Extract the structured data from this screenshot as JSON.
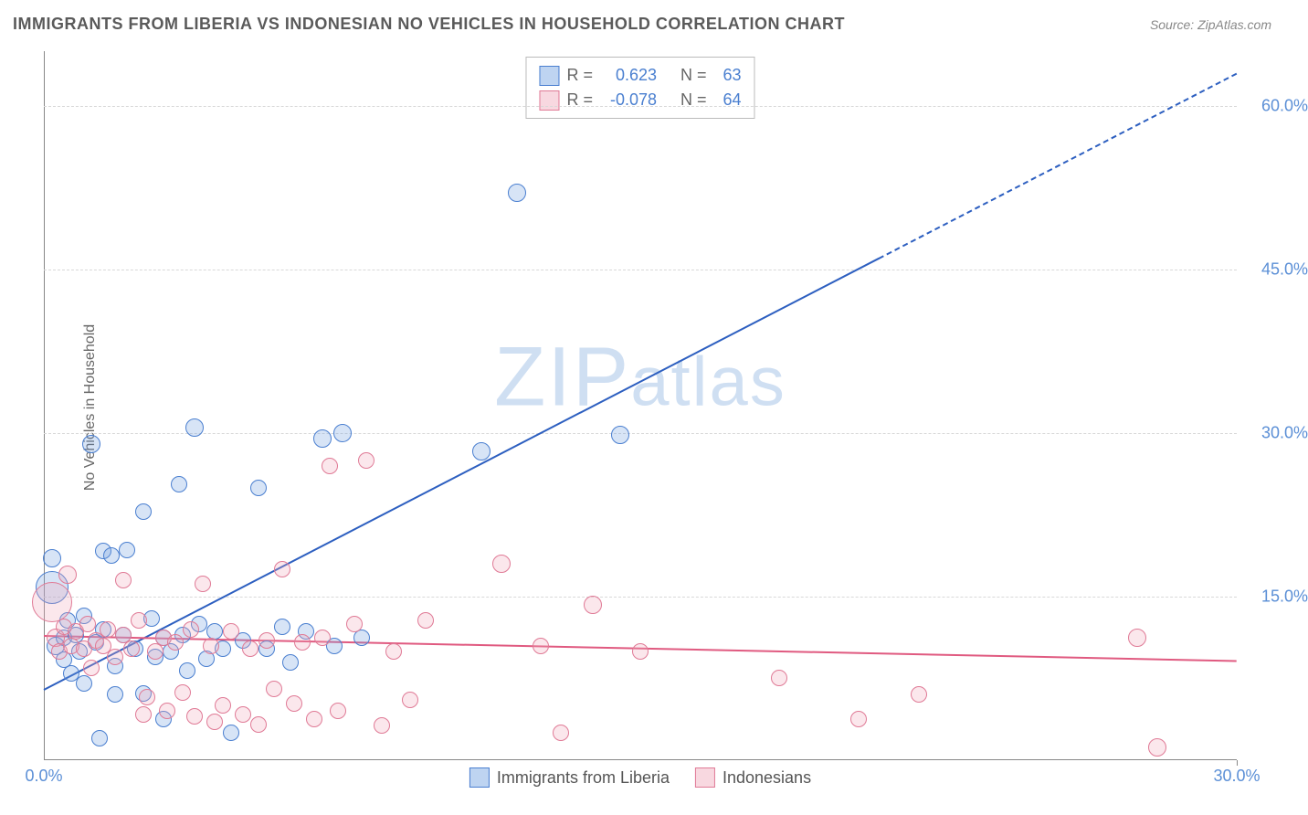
{
  "title": "IMMIGRANTS FROM LIBERIA VS INDONESIAN NO VEHICLES IN HOUSEHOLD CORRELATION CHART",
  "source": "Source: ZipAtlas.com",
  "ylabel": "No Vehicles in Household",
  "watermark_a": "ZIP",
  "watermark_b": "atlas",
  "chart": {
    "type": "scatter",
    "xlim": [
      0,
      30
    ],
    "ylim": [
      0,
      65
    ],
    "xtick_values": [
      0,
      30
    ],
    "xtick_labels": [
      "0.0%",
      "30.0%"
    ],
    "ytick_values": [
      15,
      30,
      45,
      60
    ],
    "ytick_labels": [
      "15.0%",
      "30.0%",
      "45.0%",
      "60.0%"
    ],
    "grid_color": "#d8d8d8",
    "axis_color": "#888888",
    "tick_label_color": "#5b8fd6",
    "tick_fontsize": 18,
    "background_color": "#ffffff",
    "marker_radius": 9,
    "marker_stroke_w": 1.5,
    "marker_fill_opacity": 0.28,
    "series": [
      {
        "name": "Immigrants from Liberia",
        "color": "#6f9fe0",
        "stroke": "#4a7fd0",
        "stats": {
          "R": "0.623",
          "N": "63"
        },
        "trend": {
          "x0": 0,
          "y0": 6.5,
          "x1": 30,
          "y1": 63,
          "color": "#2d5fc0",
          "width": 2,
          "dash_after_x": 21
        },
        "points": [
          [
            0.2,
            15.8,
            18
          ],
          [
            0.2,
            18.5,
            10
          ],
          [
            0.3,
            10.5,
            10
          ],
          [
            0.5,
            11.2,
            9
          ],
          [
            0.5,
            9.2,
            9
          ],
          [
            0.6,
            12.8,
            9
          ],
          [
            0.7,
            8.0,
            9
          ],
          [
            0.8,
            11.5,
            9
          ],
          [
            0.9,
            10.0,
            9
          ],
          [
            1.0,
            13.2,
            9
          ],
          [
            1.0,
            7.0,
            9
          ],
          [
            1.2,
            29.0,
            10
          ],
          [
            1.3,
            10.8,
            9
          ],
          [
            1.4,
            2.0,
            9
          ],
          [
            1.5,
            19.2,
            9
          ],
          [
            1.5,
            12.0,
            9
          ],
          [
            1.7,
            18.8,
            9
          ],
          [
            1.8,
            8.6,
            9
          ],
          [
            1.8,
            6.0,
            9
          ],
          [
            2.0,
            11.5,
            9
          ],
          [
            2.1,
            19.3,
            9
          ],
          [
            2.3,
            10.2,
            9
          ],
          [
            2.5,
            22.8,
            9
          ],
          [
            2.5,
            6.1,
            9
          ],
          [
            2.7,
            13.0,
            9
          ],
          [
            2.8,
            9.5,
            9
          ],
          [
            3.0,
            11.2,
            9
          ],
          [
            3.0,
            3.8,
            9
          ],
          [
            3.2,
            10.0,
            9
          ],
          [
            3.4,
            25.3,
            9
          ],
          [
            3.5,
            11.5,
            9
          ],
          [
            3.6,
            8.2,
            9
          ],
          [
            3.8,
            30.5,
            10
          ],
          [
            3.9,
            12.5,
            9
          ],
          [
            4.1,
            9.3,
            9
          ],
          [
            4.3,
            11.8,
            9
          ],
          [
            4.5,
            10.2,
            9
          ],
          [
            4.7,
            2.5,
            9
          ],
          [
            5.0,
            11.0,
            9
          ],
          [
            5.4,
            25.0,
            9
          ],
          [
            5.6,
            10.2,
            9
          ],
          [
            6.0,
            12.2,
            9
          ],
          [
            6.2,
            9.0,
            9
          ],
          [
            6.6,
            11.8,
            9
          ],
          [
            7.0,
            29.5,
            10
          ],
          [
            7.3,
            10.5,
            9
          ],
          [
            7.5,
            30.0,
            10
          ],
          [
            8.0,
            11.2,
            9
          ],
          [
            11.0,
            28.3,
            10
          ],
          [
            11.9,
            52.0,
            10
          ],
          [
            14.5,
            29.8,
            10
          ]
        ]
      },
      {
        "name": "Indonesians",
        "color": "#f0a8ba",
        "stroke": "#e07a96",
        "stats": {
          "R": "-0.078",
          "N": "64"
        },
        "trend": {
          "x0": 0,
          "y0": 11.5,
          "x1": 30,
          "y1": 9.2,
          "color": "#e05a80",
          "width": 2
        },
        "points": [
          [
            0.2,
            14.5,
            22
          ],
          [
            0.3,
            11.2,
            10
          ],
          [
            0.4,
            10.0,
            9
          ],
          [
            0.5,
            12.2,
            9
          ],
          [
            0.6,
            17.0,
            10
          ],
          [
            0.7,
            10.5,
            9
          ],
          [
            0.8,
            11.8,
            9
          ],
          [
            1.0,
            10.2,
            9
          ],
          [
            1.1,
            12.5,
            9
          ],
          [
            1.2,
            8.5,
            9
          ],
          [
            1.3,
            11.0,
            9
          ],
          [
            1.5,
            10.5,
            9
          ],
          [
            1.6,
            12.0,
            9
          ],
          [
            1.8,
            9.5,
            9
          ],
          [
            2.0,
            11.5,
            9
          ],
          [
            2.0,
            16.5,
            9
          ],
          [
            2.2,
            10.2,
            9
          ],
          [
            2.4,
            12.8,
            9
          ],
          [
            2.5,
            4.2,
            9
          ],
          [
            2.6,
            5.8,
            9
          ],
          [
            2.8,
            10.0,
            9
          ],
          [
            3.0,
            11.2,
            9
          ],
          [
            3.1,
            4.5,
            9
          ],
          [
            3.3,
            10.8,
            9
          ],
          [
            3.5,
            6.2,
            9
          ],
          [
            3.7,
            12.0,
            9
          ],
          [
            3.8,
            4.0,
            9
          ],
          [
            4.0,
            16.2,
            9
          ],
          [
            4.2,
            10.5,
            9
          ],
          [
            4.3,
            3.5,
            9
          ],
          [
            4.5,
            5.0,
            9
          ],
          [
            4.7,
            11.8,
            9
          ],
          [
            5.0,
            4.2,
            9
          ],
          [
            5.2,
            10.2,
            9
          ],
          [
            5.4,
            3.3,
            9
          ],
          [
            5.6,
            11.0,
            9
          ],
          [
            5.8,
            6.5,
            9
          ],
          [
            6.0,
            17.5,
            9
          ],
          [
            6.3,
            5.2,
            9
          ],
          [
            6.5,
            10.8,
            9
          ],
          [
            6.8,
            3.8,
            9
          ],
          [
            7.0,
            11.2,
            9
          ],
          [
            7.2,
            27.0,
            9
          ],
          [
            7.4,
            4.5,
            9
          ],
          [
            7.8,
            12.5,
            9
          ],
          [
            8.1,
            27.5,
            9
          ],
          [
            8.5,
            3.2,
            9
          ],
          [
            8.8,
            10.0,
            9
          ],
          [
            9.2,
            5.5,
            9
          ],
          [
            9.6,
            12.8,
            9
          ],
          [
            11.5,
            18.0,
            10
          ],
          [
            12.5,
            10.5,
            9
          ],
          [
            13.0,
            2.5,
            9
          ],
          [
            13.8,
            14.2,
            10
          ],
          [
            15.0,
            10.0,
            9
          ],
          [
            18.5,
            7.5,
            9
          ],
          [
            20.5,
            3.8,
            9
          ],
          [
            22.0,
            6.0,
            9
          ],
          [
            27.5,
            11.2,
            10
          ],
          [
            28.0,
            1.2,
            10
          ]
        ]
      }
    ]
  },
  "stats_box": {
    "label_R": "R =",
    "label_N": "N ="
  },
  "legend": {
    "items": [
      "Immigrants from Liberia",
      "Indonesians"
    ]
  }
}
